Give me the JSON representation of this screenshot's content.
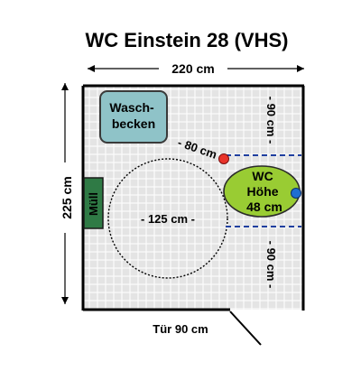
{
  "title": "WC Einstein 28 (VHS)",
  "width_label": "220 cm",
  "height_label": "225 cm",
  "sink_label": [
    "Wasch-",
    "becken"
  ],
  "trash_label": "Müll",
  "turning_circle_label": "- 125 cm -",
  "sink_to_toilet_label": "- 80 cm -",
  "clearance_top_label": "- 90 cm -",
  "clearance_bottom_label": "- 90 cm -",
  "toilet_label": [
    "WC",
    "Höhe",
    "48 cm"
  ],
  "door_label": "Tür 90 cm",
  "colors": {
    "sink": "#8fc3c8",
    "trash": "#2f7a45",
    "toilet": "#99cc33",
    "red_marker": "#e8332a",
    "blue_marker": "#1f6fd1",
    "dashed_blue": "#1f3f9f",
    "floor": "#e6e6e6",
    "wall": "#000000"
  }
}
